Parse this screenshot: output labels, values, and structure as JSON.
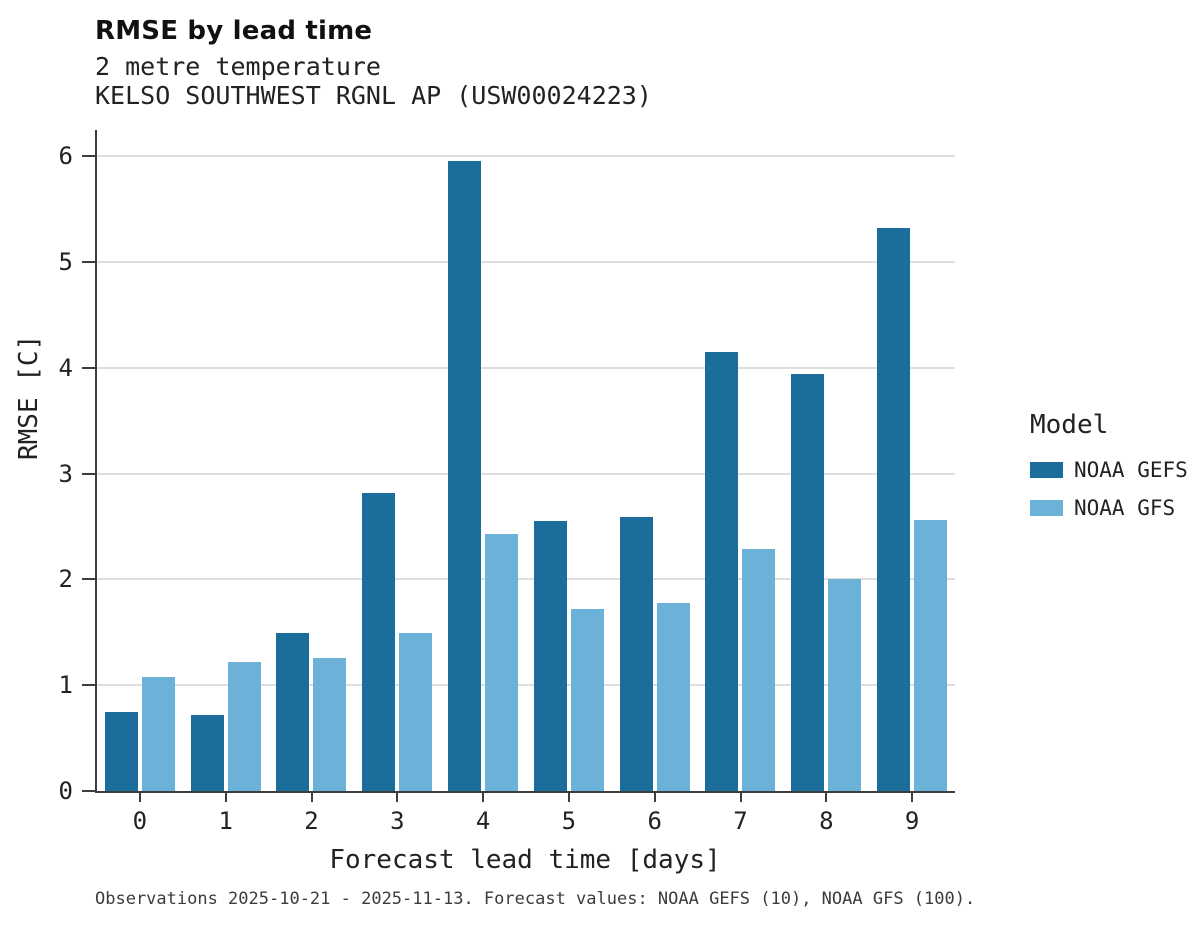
{
  "header": {
    "title": "RMSE by lead time",
    "subtitle1": "2 metre temperature",
    "subtitle2": "KELSO SOUTHWEST RGNL AP (USW00024223)"
  },
  "chart_data": {
    "type": "bar",
    "title": "RMSE by lead time",
    "subtitle": "2 metre temperature — KELSO SOUTHWEST RGNL AP (USW00024223)",
    "xlabel": "Forecast lead time [days]",
    "ylabel": "RMSE [C]",
    "categories": [
      "0",
      "1",
      "2",
      "3",
      "4",
      "5",
      "6",
      "7",
      "8",
      "9"
    ],
    "yticks": [
      0,
      1,
      2,
      3,
      4,
      5,
      6
    ],
    "ylim": [
      0,
      6.25
    ],
    "grid": "horizontal",
    "legend_title": "Model",
    "legend_position": "right",
    "series": [
      {
        "name": "NOAA GEFS",
        "color": "#1b6d9c",
        "values": [
          0.75,
          0.72,
          1.49,
          2.82,
          5.96,
          2.55,
          2.59,
          4.15,
          3.94,
          5.32
        ]
      },
      {
        "name": "NOAA GFS",
        "color": "#6cb2d8",
        "values": [
          1.08,
          1.22,
          1.26,
          1.49,
          2.43,
          1.72,
          1.78,
          2.29,
          2.0,
          2.56
        ]
      }
    ]
  },
  "footer": {
    "caption": "Observations 2025-10-21 - 2025-11-13. Forecast values: NOAA GEFS (10), NOAA GFS (100)."
  }
}
